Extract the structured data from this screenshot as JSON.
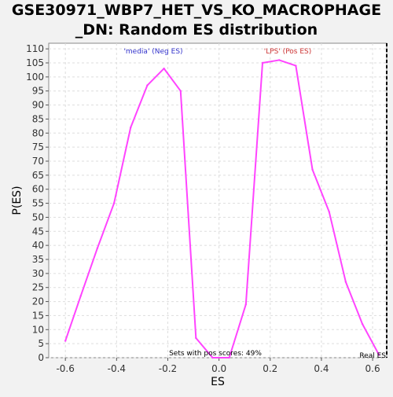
{
  "chart_data": {
    "type": "line",
    "title_line1": "GSE30971_WBP7_HET_VS_KO_MACROPHAGE",
    "title_line2": "_DN: Random ES distribution",
    "xlabel": "ES",
    "ylabel": "P(ES)",
    "xlim": [
      -0.665,
      0.655
    ],
    "ylim": [
      0,
      112
    ],
    "xticks": [
      -0.6,
      -0.4,
      -0.2,
      0.0,
      0.2,
      0.4,
      0.6
    ],
    "xtick_labels": [
      "-0.6",
      "-0.4",
      "-0.2",
      "0.0",
      "0.2",
      "0.4",
      "0.6"
    ],
    "yticks": [
      0,
      5,
      10,
      15,
      20,
      25,
      30,
      35,
      40,
      45,
      50,
      55,
      60,
      65,
      70,
      75,
      80,
      85,
      90,
      95,
      100,
      105,
      110
    ],
    "grid": true,
    "series": [
      {
        "color": "#ff44ff",
        "x": [
          -0.6,
          -0.54,
          -0.475,
          -0.41,
          -0.345,
          -0.28,
          -0.215,
          -0.15,
          -0.09,
          -0.025,
          0.04,
          0.105,
          0.17,
          0.235,
          0.3,
          0.365,
          0.43,
          0.495,
          0.56,
          0.625
        ],
        "y": [
          6,
          22,
          39,
          55,
          82,
          97,
          103,
          95,
          7,
          0,
          0,
          19,
          105,
          106,
          104,
          67,
          52,
          27,
          12,
          1
        ]
      }
    ],
    "annotations": {
      "neg_label": "'media' (Neg ES)",
      "neg_color": "#3333cc",
      "pos_label": "'LPS' (Pos ES)",
      "pos_color": "#cc3333",
      "pos_scores_text": "Sets with pos scores: 49%",
      "real_es_label": "Real ES",
      "real_es_x": 0.655
    }
  }
}
